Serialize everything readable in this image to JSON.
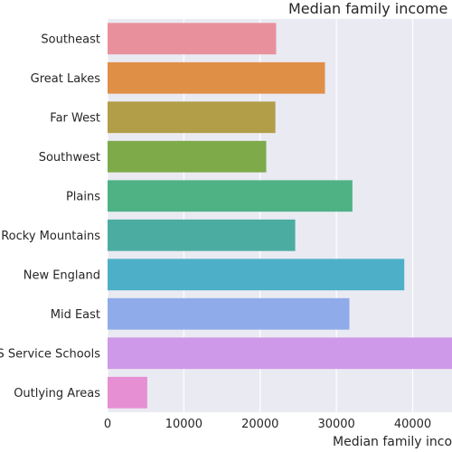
{
  "chart_data": {
    "type": "bar",
    "orientation": "horizontal",
    "title": "Median family income",
    "xlabel": "Median family income",
    "ylabel": "",
    "xlim": [
      0,
      45500
    ],
    "x_ticks": [
      0,
      10000,
      20000,
      30000,
      40000
    ],
    "grid": true,
    "categories": [
      "Southeast",
      "Great Lakes",
      "Far West",
      "Southwest",
      "Plains",
      "Rocky Mountains",
      "New England",
      "Mid East",
      "US Service Schools",
      "Outlying Areas"
    ],
    "values": [
      22100,
      28500,
      22000,
      20800,
      32100,
      24600,
      38900,
      31700,
      46000,
      5200
    ],
    "colors": [
      "#e8919d",
      "#e08f47",
      "#b29e49",
      "#7eaa4a",
      "#4eb284",
      "#4bada1",
      "#4eb0c8",
      "#8fabe9",
      "#ce99e8",
      "#e68fd3"
    ],
    "background_color": "#eaeaf2"
  }
}
